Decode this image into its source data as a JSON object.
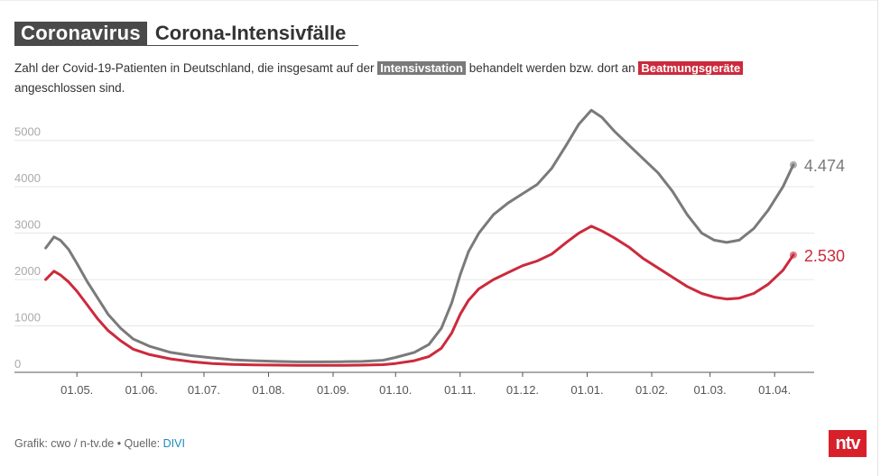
{
  "header": {
    "tag": "Coronavirus",
    "title": "Corona-Intensivfälle"
  },
  "subtitle": {
    "part1": "Zahl der Covid-19-Patienten in Deutschland, die insgesamt auf der ",
    "hl1": "Intensivstation",
    "part2": " behandelt werden bzw. dort an ",
    "hl2": "Beatmungsgeräte",
    "part3": " angeschlossen sind."
  },
  "footer": {
    "text": "Grafik: cwo / n-tv.de • Quelle: ",
    "source": "DIVI"
  },
  "logo": {
    "text": "ntv"
  },
  "colors": {
    "gray": "#7a7a7a",
    "red": "#cc2a3c",
    "grid": "#e6e6e6"
  },
  "chart_data": {
    "type": "line",
    "x_tick_labels": [
      "01.05.",
      "01.06.",
      "01.07.",
      "01.08.",
      "01.09.",
      "01.10.",
      "01.11.",
      "01.12.",
      "01.01.",
      "01.02.",
      "01.03.",
      "01.04."
    ],
    "y_ticks": [
      "0",
      "1000",
      "2000",
      "3000",
      "4000",
      "5000"
    ],
    "ylim": [
      0,
      5500
    ],
    "grid": true,
    "series": [
      {
        "name": "Intensivstation",
        "color": "#7a7a7a",
        "end_label": "4.474",
        "points": [
          [
            "2020-04-16",
            2680
          ],
          [
            "2020-04-20",
            2920
          ],
          [
            "2020-04-23",
            2850
          ],
          [
            "2020-04-27",
            2650
          ],
          [
            "2020-05-01",
            2350
          ],
          [
            "2020-05-06",
            1950
          ],
          [
            "2020-05-11",
            1600
          ],
          [
            "2020-05-16",
            1250
          ],
          [
            "2020-05-22",
            950
          ],
          [
            "2020-05-28",
            720
          ],
          [
            "2020-06-05",
            560
          ],
          [
            "2020-06-15",
            430
          ],
          [
            "2020-06-25",
            360
          ],
          [
            "2020-07-05",
            310
          ],
          [
            "2020-07-15",
            270
          ],
          [
            "2020-07-25",
            250
          ],
          [
            "2020-08-05",
            235
          ],
          [
            "2020-08-15",
            225
          ],
          [
            "2020-08-25",
            225
          ],
          [
            "2020-09-05",
            230
          ],
          [
            "2020-09-15",
            235
          ],
          [
            "2020-09-25",
            260
          ],
          [
            "2020-10-01",
            320
          ],
          [
            "2020-10-10",
            430
          ],
          [
            "2020-10-17",
            600
          ],
          [
            "2020-10-23",
            950
          ],
          [
            "2020-10-28",
            1500
          ],
          [
            "2020-11-01",
            2100
          ],
          [
            "2020-11-05",
            2600
          ],
          [
            "2020-11-10",
            3000
          ],
          [
            "2020-11-17",
            3400
          ],
          [
            "2020-11-24",
            3650
          ],
          [
            "2020-12-01",
            3850
          ],
          [
            "2020-12-08",
            4050
          ],
          [
            "2020-12-15",
            4400
          ],
          [
            "2020-12-22",
            4900
          ],
          [
            "2020-12-28",
            5350
          ],
          [
            "2021-01-03",
            5650
          ],
          [
            "2021-01-08",
            5500
          ],
          [
            "2021-01-14",
            5200
          ],
          [
            "2021-01-21",
            4900
          ],
          [
            "2021-01-28",
            4600
          ],
          [
            "2021-02-04",
            4300
          ],
          [
            "2021-02-11",
            3900
          ],
          [
            "2021-02-18",
            3400
          ],
          [
            "2021-02-25",
            3000
          ],
          [
            "2021-03-03",
            2850
          ],
          [
            "2021-03-09",
            2800
          ],
          [
            "2021-03-15",
            2850
          ],
          [
            "2021-03-22",
            3100
          ],
          [
            "2021-03-29",
            3500
          ],
          [
            "2021-04-05",
            4000
          ],
          [
            "2021-04-10",
            4474
          ]
        ]
      },
      {
        "name": "Beatmungsgeräte",
        "color": "#cc2a3c",
        "end_label": "2.530",
        "points": [
          [
            "2020-04-16",
            2000
          ],
          [
            "2020-04-20",
            2180
          ],
          [
            "2020-04-23",
            2100
          ],
          [
            "2020-04-27",
            1950
          ],
          [
            "2020-05-01",
            1750
          ],
          [
            "2020-05-06",
            1450
          ],
          [
            "2020-05-11",
            1150
          ],
          [
            "2020-05-16",
            900
          ],
          [
            "2020-05-22",
            680
          ],
          [
            "2020-05-28",
            500
          ],
          [
            "2020-06-05",
            380
          ],
          [
            "2020-06-15",
            290
          ],
          [
            "2020-06-25",
            230
          ],
          [
            "2020-07-05",
            190
          ],
          [
            "2020-07-15",
            170
          ],
          [
            "2020-07-25",
            160
          ],
          [
            "2020-08-05",
            155
          ],
          [
            "2020-08-15",
            150
          ],
          [
            "2020-08-25",
            150
          ],
          [
            "2020-09-05",
            150
          ],
          [
            "2020-09-15",
            155
          ],
          [
            "2020-09-25",
            165
          ],
          [
            "2020-10-01",
            190
          ],
          [
            "2020-10-10",
            250
          ],
          [
            "2020-10-17",
            340
          ],
          [
            "2020-10-23",
            520
          ],
          [
            "2020-10-28",
            850
          ],
          [
            "2020-11-01",
            1250
          ],
          [
            "2020-11-05",
            1550
          ],
          [
            "2020-11-10",
            1800
          ],
          [
            "2020-11-17",
            2000
          ],
          [
            "2020-11-24",
            2150
          ],
          [
            "2020-12-01",
            2300
          ],
          [
            "2020-12-08",
            2400
          ],
          [
            "2020-12-15",
            2550
          ],
          [
            "2020-12-22",
            2800
          ],
          [
            "2020-12-28",
            3000
          ],
          [
            "2021-01-03",
            3150
          ],
          [
            "2021-01-08",
            3050
          ],
          [
            "2021-01-14",
            2900
          ],
          [
            "2021-01-21",
            2700
          ],
          [
            "2021-01-28",
            2450
          ],
          [
            "2021-02-04",
            2250
          ],
          [
            "2021-02-11",
            2050
          ],
          [
            "2021-02-18",
            1850
          ],
          [
            "2021-02-25",
            1700
          ],
          [
            "2021-03-03",
            1620
          ],
          [
            "2021-03-09",
            1580
          ],
          [
            "2021-03-15",
            1600
          ],
          [
            "2021-03-22",
            1700
          ],
          [
            "2021-03-29",
            1900
          ],
          [
            "2021-04-05",
            2200
          ],
          [
            "2021-04-10",
            2530
          ]
        ]
      }
    ]
  }
}
